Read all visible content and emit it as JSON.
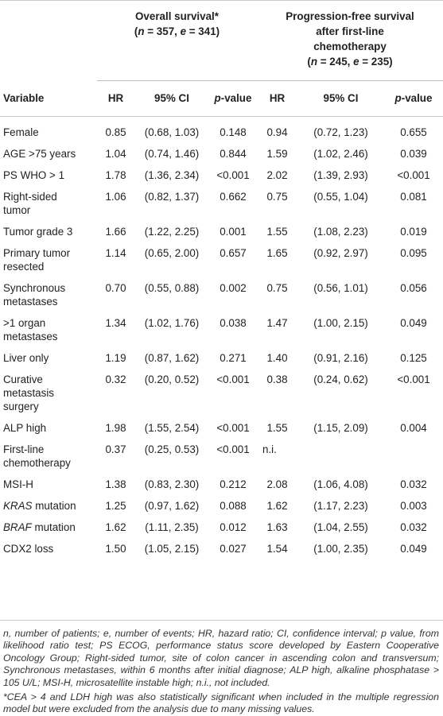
{
  "header": {
    "os": {
      "line1": "Overall survival*",
      "line2": "(n = 357, e = 341)"
    },
    "pfs": {
      "line1": "Progression-free survival",
      "line2": "after first-line",
      "line3": "chemotherapy",
      "line4": "(n = 245, e = 235)"
    },
    "columns": {
      "variable": "Variable",
      "hr": "HR",
      "ci": "95% CI",
      "p": "p-value"
    }
  },
  "rows": [
    {
      "var": [
        "Female"
      ],
      "hr1": "0.85",
      "ci1": "(0.68, 1.03)",
      "p1": "0.148",
      "hr2": "0.94",
      "ci2": "(0.72, 1.23)",
      "p2": "0.655"
    },
    {
      "var": [
        "AGE >75 years"
      ],
      "hr1": "1.04",
      "ci1": "(0.74, 1.46)",
      "p1": "0.844",
      "hr2": "1.59",
      "ci2": "(1.02, 2.46)",
      "p2": "0.039"
    },
    {
      "var": [
        "PS WHO > 1"
      ],
      "hr1": "1.78",
      "ci1": "(1.36, 2.34)",
      "p1": "<0.001",
      "hr2": "2.02",
      "ci2": "(1.39, 2.93)",
      "p2": "<0.001"
    },
    {
      "var": [
        "Right-sided",
        "tumor"
      ],
      "hr1": "1.06",
      "ci1": "(0.82, 1.37)",
      "p1": "0.662",
      "hr2": "0.75",
      "ci2": "(0.55, 1.04)",
      "p2": "0.081"
    },
    {
      "var": [
        "Tumor grade 3"
      ],
      "hr1": "1.66",
      "ci1": "(1.22, 2.25)",
      "p1": "0.001",
      "hr2": "1.55",
      "ci2": "(1.08, 2.23)",
      "p2": "0.019"
    },
    {
      "var": [
        "Primary tumor",
        "resected"
      ],
      "hr1": "1.14",
      "ci1": "(0.65, 2.00)",
      "p1": "0.657",
      "hr2": "1.65",
      "ci2": "(0.92, 2.97)",
      "p2": "0.095"
    },
    {
      "var": [
        "Synchronous",
        "metastases"
      ],
      "hr1": "0.70",
      "ci1": "(0.55, 0.88)",
      "p1": "0.002",
      "hr2": "0.75",
      "ci2": "(0.56, 1.01)",
      "p2": "0.056"
    },
    {
      "var": [
        ">1 organ",
        "metastases"
      ],
      "hr1": "1.34",
      "ci1": "(1.02, 1.76)",
      "p1": "0.038",
      "hr2": "1.47",
      "ci2": "(1.00, 2.15)",
      "p2": "0.049"
    },
    {
      "var": [
        "Liver only"
      ],
      "hr1": "1.19",
      "ci1": "(0.87, 1.62)",
      "p1": "0.271",
      "hr2": "1.40",
      "ci2": "(0.91, 2.16)",
      "p2": "0.125"
    },
    {
      "var": [
        "Curative",
        "metastasis",
        "surgery"
      ],
      "hr1": "0.32",
      "ci1": "(0.20, 0.52)",
      "p1": "<0.001",
      "hr2": "0.38",
      "ci2": "(0.24, 0.62)",
      "p2": "<0.001"
    },
    {
      "var": [
        "ALP high"
      ],
      "hr1": "1.98",
      "ci1": "(1.55, 2.54)",
      "p1": "<0.001",
      "hr2": "1.55",
      "ci2": "(1.15, 2.09)",
      "p2": "0.004"
    },
    {
      "var": [
        "First-line",
        "chemotherapy"
      ],
      "hr1": "0.37",
      "ci1": "(0.25, 0.53)",
      "p1": "<0.001",
      "hr2": "n.i.",
      "ci2": "",
      "p2": ""
    },
    {
      "var": [
        "MSI-H"
      ],
      "hr1": "1.38",
      "ci1": "(0.83, 2.30)",
      "p1": "0.212",
      "hr2": "2.08",
      "ci2": "(1.06, 4.08)",
      "p2": "0.032"
    },
    {
      "var": [
        "KRAS mutation"
      ],
      "italic_prefix": "KRAS",
      "hr1": "1.25",
      "ci1": "(0.97, 1.62)",
      "p1": "0.088",
      "hr2": "1.62",
      "ci2": "(1.17, 2.23)",
      "p2": "0.003"
    },
    {
      "var": [
        "BRAF mutation"
      ],
      "italic_prefix": "BRAF",
      "hr1": "1.62",
      "ci1": "(1.11, 2.35)",
      "p1": "0.012",
      "hr2": "1.63",
      "ci2": "(1.04, 2.55)",
      "p2": "0.032"
    },
    {
      "var": [
        "CDX2 loss"
      ],
      "hr1": "1.50",
      "ci1": "(1.05, 2.15)",
      "p1": "0.027",
      "hr2": "1.54",
      "ci2": "(1.00, 2.35)",
      "p2": "0.049"
    }
  ],
  "footnotes": {
    "abbrev": "n, number of patients; e, number of events; HR, hazard ratio; CI, confidence interval; p value, from likelihood ratio test; PS ECOG, performance status score developed by Eastern Cooperative Oncology Group; Right-sided tumor, site of colon cancer in ascending colon and transversum; Synchronous metastases, within 6 months after initial diagnose; ALP high, alkaline phosphatase > 105 U/L; MSI-H, microsatellite instable high; n.i., not included.",
    "star": "*CEA > 4 and LDH high was also statistically significant when included in the multiple regression model but were excluded from the analysis due to many missing values."
  }
}
